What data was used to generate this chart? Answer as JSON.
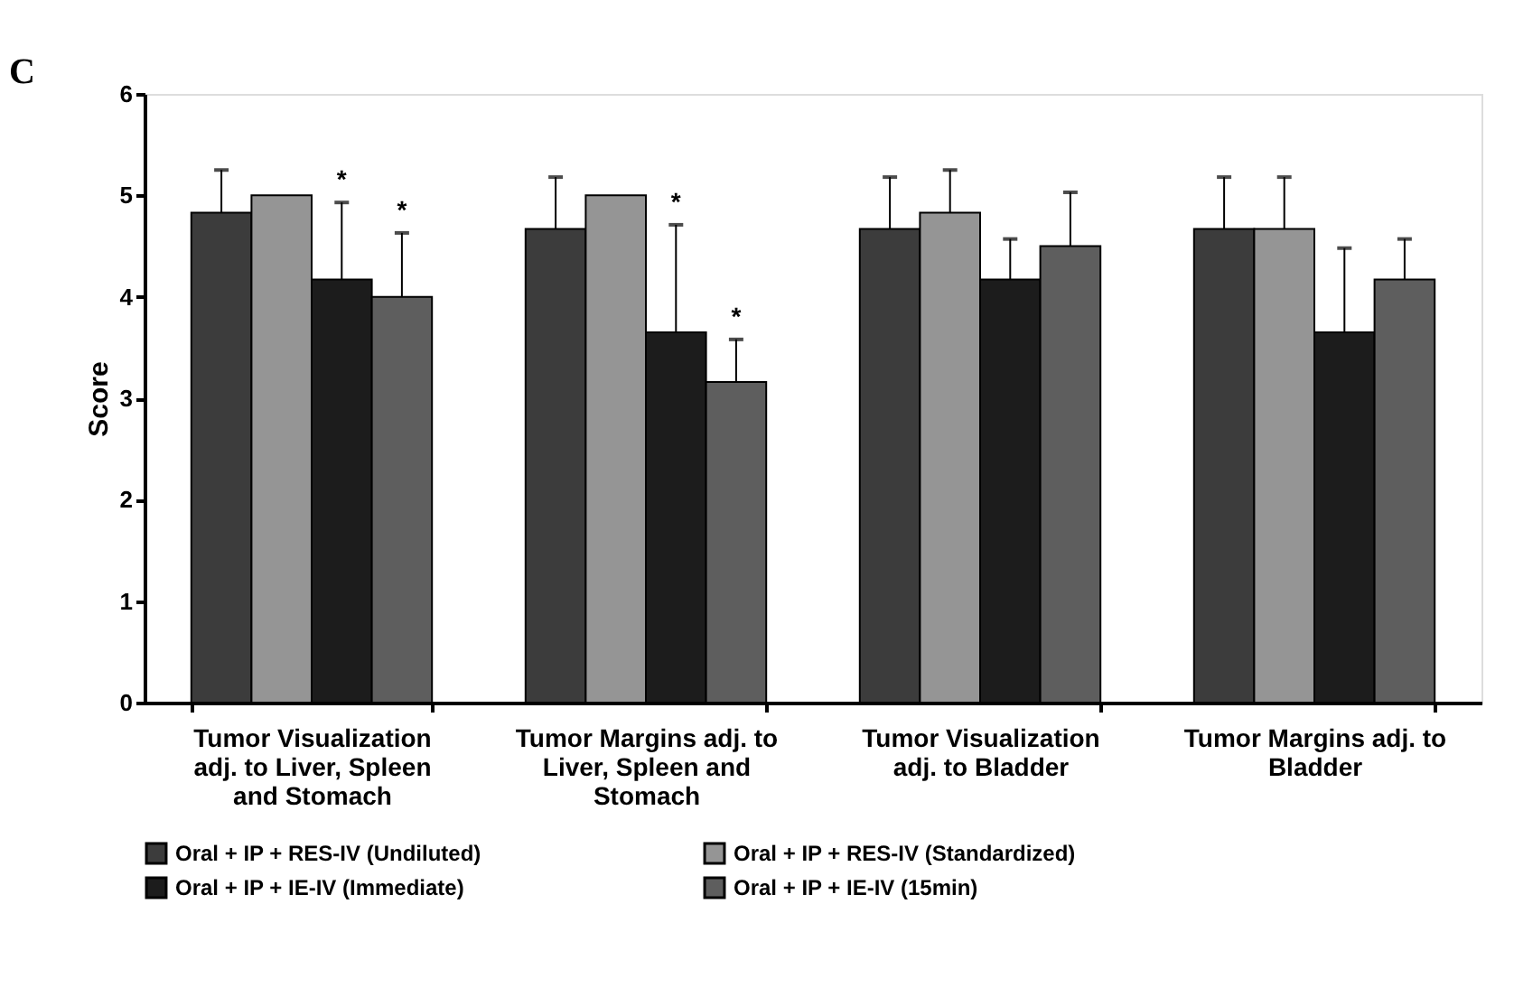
{
  "chart_data": {
    "type": "bar",
    "categories": [
      "Tumor Visualization adj. to Liver, Spleen and Stomach",
      "Tumor Margins adj. to Liver, Spleen and Stomach",
      "Tumor Visualization adj. to Bladder",
      "Tumor Margins adj. to Bladder"
    ],
    "ylabel": "Score",
    "ylim": [
      0,
      6
    ],
    "yticks": [
      {
        "value": 0,
        "label": "0"
      },
      {
        "value": 1,
        "label": "1"
      },
      {
        "value": 2,
        "label": "2"
      },
      {
        "value": 3,
        "label": "3"
      },
      {
        "value": 4,
        "label": "4"
      },
      {
        "value": 5,
        "label": "5"
      },
      {
        "value": 6,
        "label": "6"
      }
    ],
    "grid": false,
    "legend": "bottom",
    "series": [
      {
        "name": "Oral + IP + RES-IV (Undiluted)",
        "color": "#3c3c3c",
        "values": [
          4.83,
          4.67,
          4.67,
          4.67
        ],
        "errors": [
          [
            4.83,
            5.25
          ],
          [
            4.67,
            5.18
          ],
          [
            4.67,
            5.18
          ],
          [
            4.67,
            5.18
          ]
        ]
      },
      {
        "name": "Oral + IP + RES-IV (Standardized)",
        "color": "#959595",
        "values": [
          5.0,
          5.0,
          4.83,
          4.67
        ],
        "errors": [
          null,
          null,
          [
            4.83,
            5.25
          ],
          [
            4.67,
            5.18
          ]
        ]
      },
      {
        "name": "Oral + IP + IE-IV (Immediate)",
        "color": "#1c1c1c",
        "values": [
          4.17,
          3.65,
          4.17,
          3.65
        ],
        "errors": [
          [
            4.17,
            4.93
          ],
          [
            3.65,
            4.71
          ],
          [
            4.17,
            4.57
          ],
          [
            3.65,
            4.48
          ]
        ]
      },
      {
        "name": "Oral + IP + IE-IV (15min)",
        "color": "#5e5e5e",
        "values": [
          4.0,
          3.16,
          4.5,
          4.17
        ],
        "errors": [
          [
            4.0,
            4.63
          ],
          [
            3.16,
            3.58
          ],
          [
            4.5,
            5.03
          ],
          [
            4.17,
            4.57
          ]
        ]
      }
    ],
    "annotations": [
      "C",
      {
        "text": "*",
        "x": "Tumor Visualization adj. to Liver, Spleen and Stomach",
        "y": 4.93
      },
      "*",
      {
        "text": "*",
        "x": "Tumor Margins adj. to Liver, Spleen and Stomach",
        "y": 4.71
      },
      "*"
    ]
  }
}
